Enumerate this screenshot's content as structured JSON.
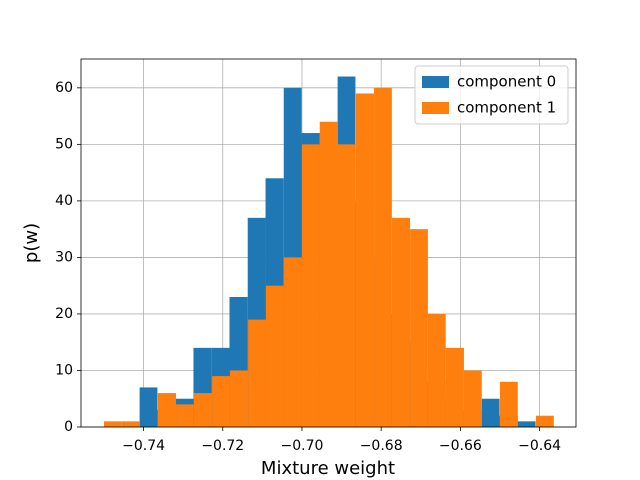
{
  "chart_data": {
    "type": "histogram",
    "xlabel": "Mixture weight",
    "ylabel": "p(w)",
    "series": [
      {
        "name": "component 0",
        "color": "#1f77b4",
        "bins": [
          -0.741,
          -0.7365,
          -0.7319,
          -0.7274,
          -0.7228,
          -0.7183,
          -0.7137,
          -0.7092,
          -0.7046,
          -0.7001,
          -0.6955,
          -0.691,
          -0.6865,
          -0.6819,
          -0.6774,
          -0.6728,
          -0.6683,
          -0.6637,
          -0.6592,
          -0.6546,
          -0.6501,
          -0.6455,
          -0.641
        ],
        "values": [
          7,
          3,
          5,
          14,
          14,
          23,
          37,
          44,
          60,
          52,
          52,
          62,
          40,
          30,
          20,
          15,
          8,
          5,
          3,
          5,
          2,
          1
        ]
      },
      {
        "name": "component 1",
        "color": "#ff7f0e",
        "bins": [
          -0.75,
          -0.7455,
          -0.7409,
          -0.7364,
          -0.7318,
          -0.7273,
          -0.7227,
          -0.7182,
          -0.7136,
          -0.7091,
          -0.7046,
          -0.7,
          -0.6955,
          -0.6909,
          -0.6864,
          -0.6818,
          -0.6773,
          -0.6727,
          -0.6682,
          -0.6637,
          -0.6591,
          -0.6546,
          -0.65,
          -0.6455,
          -0.6409,
          -0.6364
        ],
        "values": [
          1,
          1,
          0,
          6,
          4,
          6,
          9,
          10,
          19,
          25,
          30,
          50,
          54,
          50,
          59,
          60,
          37,
          35,
          20,
          14,
          10,
          0,
          8,
          0,
          2
        ]
      }
    ],
    "xlim": [
      -0.7558,
      -0.6308
    ],
    "xticks": [
      {
        "value": -0.74,
        "label": "−0.74"
      },
      {
        "value": -0.72,
        "label": "−0.72"
      },
      {
        "value": -0.7,
        "label": "−0.70"
      },
      {
        "value": -0.68,
        "label": "−0.68"
      },
      {
        "value": -0.66,
        "label": "−0.66"
      },
      {
        "value": -0.64,
        "label": "−0.64"
      }
    ],
    "ylim": [
      0,
      65.1
    ],
    "yticks": [
      0,
      10,
      20,
      30,
      40,
      50,
      60
    ],
    "grid": true,
    "legend": "upper right"
  }
}
